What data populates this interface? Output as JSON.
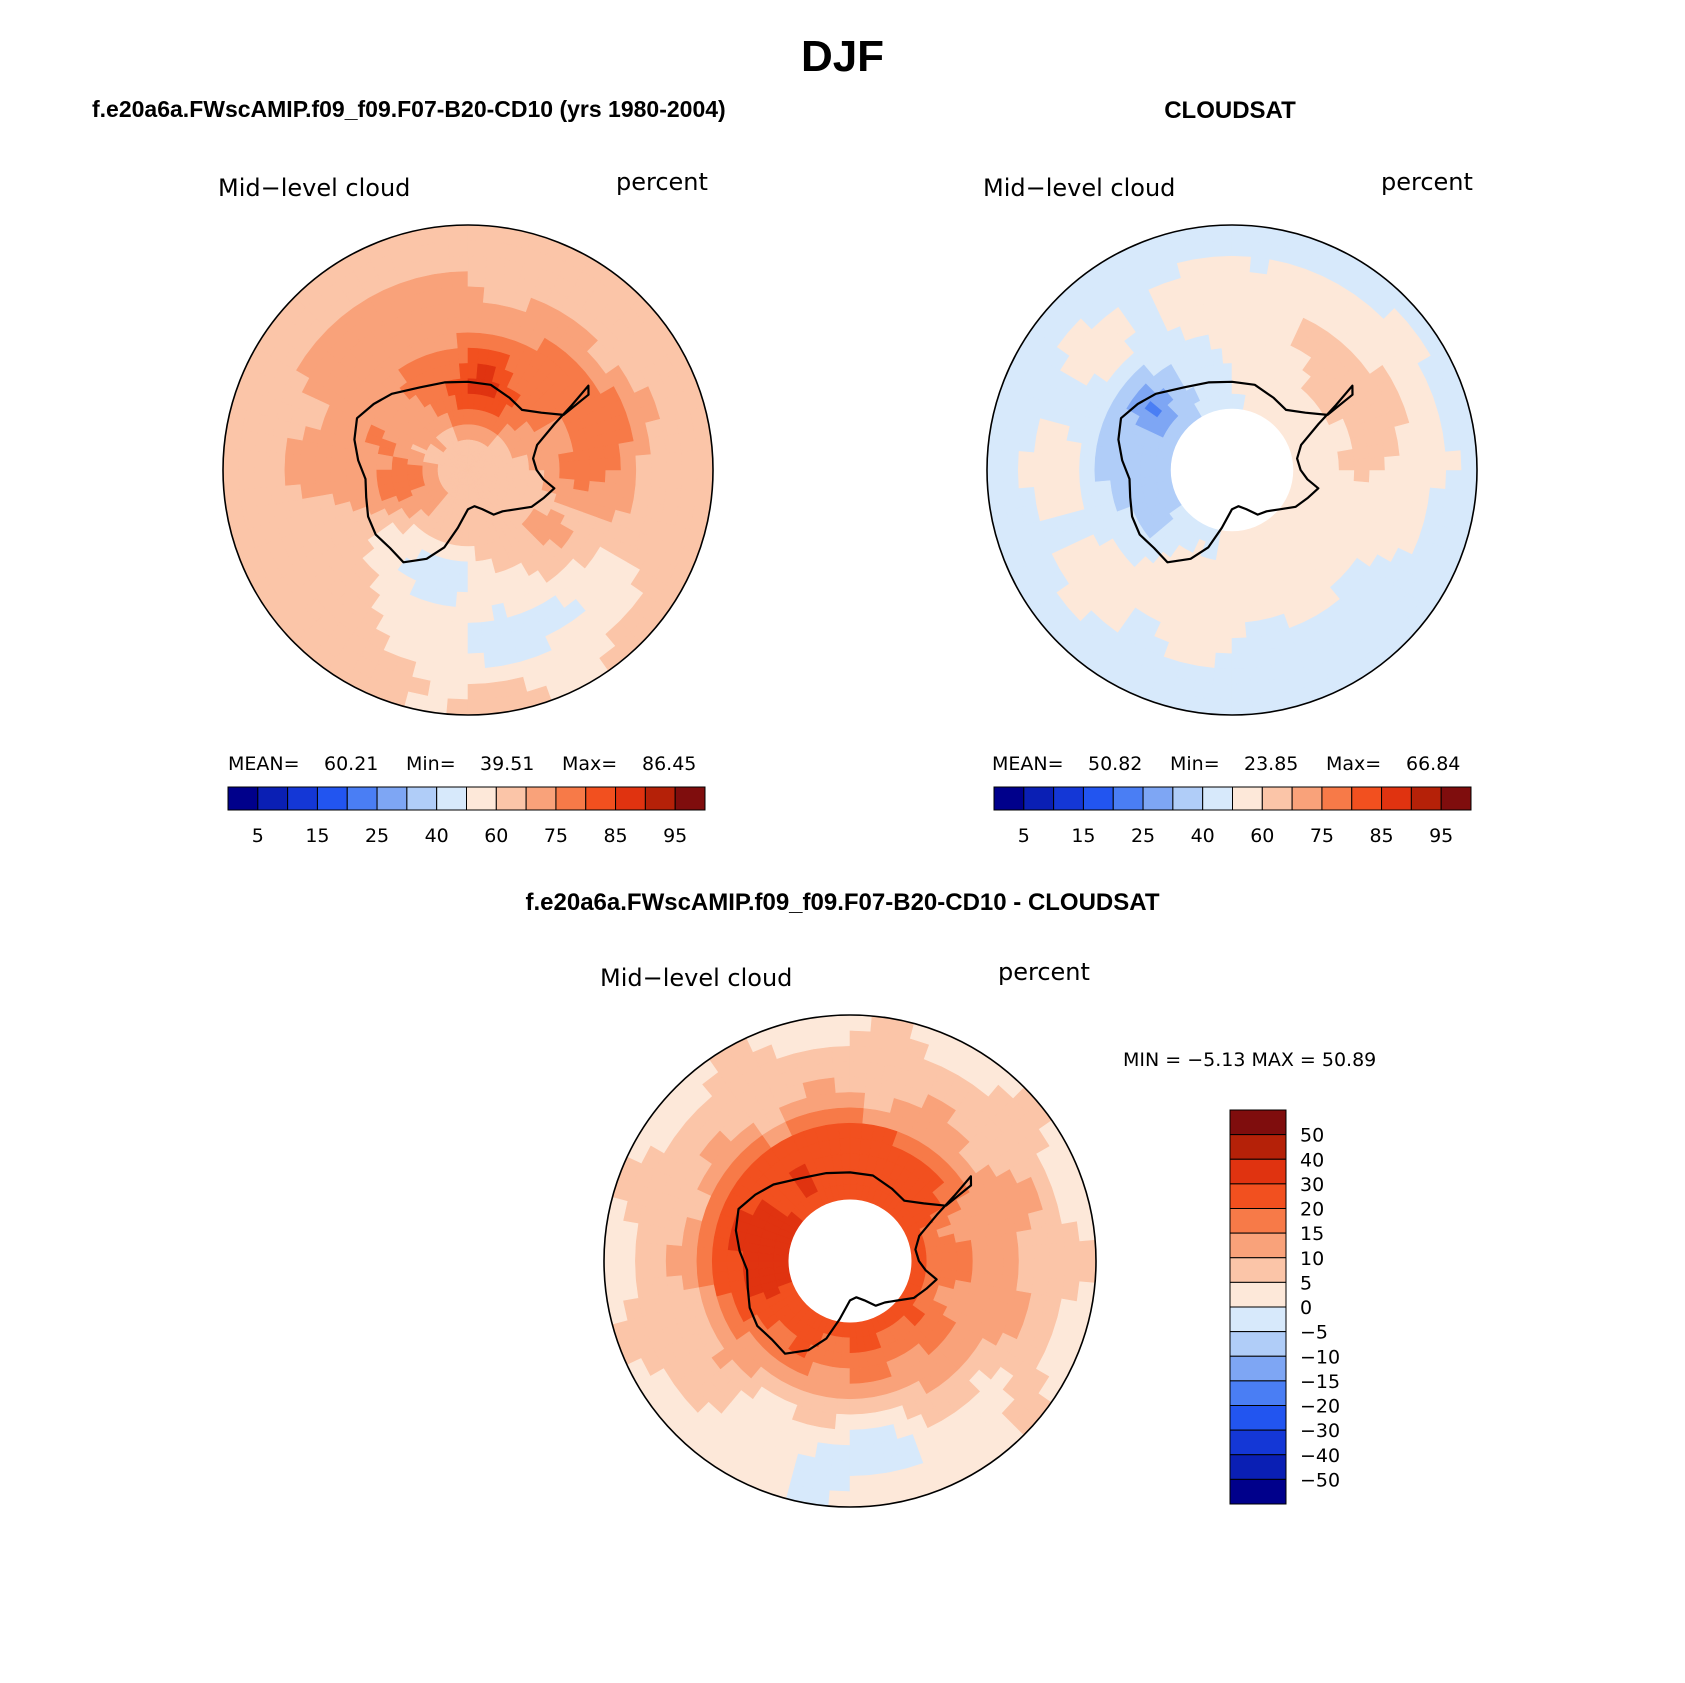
{
  "main_title": "DJF",
  "panels": {
    "left": {
      "title": "f.e20a6a.FWscAMIP.f09_f09.F07-B20-CD10 (yrs 1980-2004)",
      "left_label": "Mid−level cloud",
      "right_label": "percent",
      "stats": {
        "mean_label": "MEAN=",
        "mean": "60.21",
        "min_label": "Min=",
        "min": "39.51",
        "max_label": "Max=",
        "max": "86.45"
      }
    },
    "right": {
      "title": "CLOUDSAT",
      "left_label": "Mid−level cloud",
      "right_label": "percent",
      "stats": {
        "mean_label": "MEAN=",
        "mean": "50.82",
        "min_label": "Min=",
        "min": "23.85",
        "max_label": "Max=",
        "max": "66.84"
      }
    },
    "diff": {
      "title": "f.e20a6a.FWscAMIP.f09_f09.F07-B20-CD10 - CLOUDSAT",
      "left_label": "Mid−level cloud",
      "right_label": "percent",
      "stats_text": "MIN =   −5.13 MAX =   50.89"
    }
  },
  "colors": {
    "abs_scale": [
      "#00008b",
      "#0a1fb4",
      "#1437d6",
      "#2255f0",
      "#4a7ef4",
      "#7ea6f4",
      "#b0cdf8",
      "#d7e9fb",
      "#fde8d9",
      "#fbc5a8",
      "#f9a27a",
      "#f77a48",
      "#f2501f",
      "#e03310",
      "#b52108",
      "#7f0d0d"
    ],
    "diff_scale": [
      "#00008b",
      "#0a1fb4",
      "#1437d6",
      "#2255f0",
      "#4a7ef4",
      "#7ea6f4",
      "#b0cdf8",
      "#d7e9fb",
      "#fde8d9",
      "#fbc5a8",
      "#f9a27a",
      "#f77a48",
      "#f2501f",
      "#e03310",
      "#b52108",
      "#7f0d0d"
    ]
  },
  "chart_data": [
    {
      "type": "heatmap",
      "name": "model",
      "projection": "south-polar-stereographic",
      "colorbar_ticks": [
        "5",
        "15",
        "25",
        "40",
        "60",
        "75",
        "85",
        "95"
      ],
      "colorbar_levels": [
        5,
        10,
        15,
        20,
        25,
        30,
        40,
        50,
        60,
        70,
        75,
        80,
        85,
        90,
        95
      ],
      "mean": 60.21,
      "min": 39.51,
      "max": 86.45,
      "field_rings": [
        62,
        67,
        70,
        72,
        70,
        66,
        62
      ],
      "field_features": [
        {
          "lon": 110,
          "r": 0.3,
          "value": 80
        },
        {
          "lon": -10,
          "r": 0.35,
          "value": 86
        },
        {
          "lon": -70,
          "r": 0.55,
          "value": 78
        },
        {
          "lon": 160,
          "r": 0.45,
          "value": 45
        },
        {
          "lon": 30,
          "r": 0.7,
          "value": 73
        },
        {
          "lon": 200,
          "r": 0.7,
          "value": 44
        }
      ]
    },
    {
      "type": "heatmap",
      "name": "observations",
      "projection": "south-polar-stereographic",
      "colorbar_ticks": [
        "5",
        "15",
        "25",
        "40",
        "60",
        "75",
        "85",
        "95"
      ],
      "colorbar_levels": [
        5,
        10,
        15,
        20,
        25,
        30,
        40,
        50,
        60,
        70,
        75,
        80,
        85,
        90,
        95
      ],
      "mean": 50.82,
      "min": 23.85,
      "max": 66.84,
      "missing_center_radius_fraction": 0.25,
      "field_rings": [
        52,
        48,
        52,
        55,
        53,
        50,
        47
      ],
      "field_features": [
        {
          "lon": 60,
          "r": 0.4,
          "value": 24
        },
        {
          "lon": 100,
          "r": 0.35,
          "value": 32
        },
        {
          "lon": -60,
          "r": 0.6,
          "value": 66
        },
        {
          "lon": 210,
          "r": 0.8,
          "value": 46
        }
      ]
    },
    {
      "type": "heatmap",
      "name": "difference",
      "projection": "south-polar-stereographic",
      "colorbar_ticks": [
        "50",
        "40",
        "30",
        "20",
        "15",
        "10",
        "5",
        "0",
        "−5",
        "−10",
        "−15",
        "−20",
        "−30",
        "−40",
        "−50"
      ],
      "colorbar_levels": [
        -50,
        -40,
        -30,
        -20,
        -15,
        -10,
        -5,
        0,
        5,
        10,
        15,
        20,
        30,
        40,
        50
      ],
      "min": -5.13,
      "max": 50.89,
      "missing_center_radius_fraction": 0.25,
      "field_rings": [
        5,
        25,
        20,
        14,
        9,
        7,
        3
      ],
      "field_features": [
        {
          "lon": 80,
          "r": 0.35,
          "value": 40
        },
        {
          "lon": 20,
          "r": 0.35,
          "value": 30
        },
        {
          "lon": -20,
          "r": 0.35,
          "value": 28
        },
        {
          "lon": -90,
          "r": 0.55,
          "value": 14
        },
        {
          "lon": 180,
          "r": 0.8,
          "value": -2
        }
      ]
    }
  ]
}
